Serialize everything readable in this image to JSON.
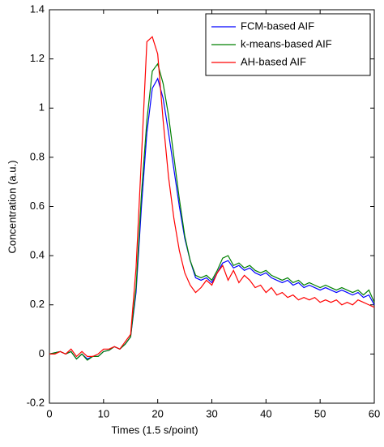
{
  "chart_data": {
    "type": "line",
    "xlabel": "Times (1.5 s/point)",
    "ylabel": "Concentration (a.u.)",
    "x": [
      0,
      1,
      2,
      3,
      4,
      5,
      6,
      7,
      8,
      9,
      10,
      11,
      12,
      13,
      14,
      15,
      16,
      17,
      18,
      19,
      20,
      21,
      22,
      23,
      24,
      25,
      26,
      27,
      28,
      29,
      30,
      31,
      32,
      33,
      34,
      35,
      36,
      37,
      38,
      39,
      40,
      41,
      42,
      43,
      44,
      45,
      46,
      47,
      48,
      49,
      50,
      51,
      52,
      53,
      54,
      55,
      56,
      57,
      58,
      59,
      60
    ],
    "series": [
      {
        "name": "FCM-based AIF",
        "color": "#0000ff",
        "values": [
          0,
          0.005,
          0.01,
          0,
          0.01,
          -0.02,
          0,
          -0.02,
          -0.01,
          -0.01,
          0.01,
          0.015,
          0.03,
          0.02,
          0.04,
          0.07,
          0.25,
          0.6,
          0.9,
          1.08,
          1.12,
          1.04,
          0.9,
          0.75,
          0.6,
          0.47,
          0.38,
          0.31,
          0.3,
          0.31,
          0.29,
          0.33,
          0.37,
          0.38,
          0.35,
          0.36,
          0.34,
          0.35,
          0.33,
          0.32,
          0.33,
          0.31,
          0.3,
          0.29,
          0.3,
          0.28,
          0.29,
          0.27,
          0.28,
          0.27,
          0.26,
          0.27,
          0.26,
          0.25,
          0.26,
          0.25,
          0.24,
          0.25,
          0.23,
          0.24,
          0.2
        ]
      },
      {
        "name": "k-means-based AIF",
        "color": "#008000",
        "values": [
          0,
          0.005,
          0.01,
          0,
          0.01,
          -0.02,
          0,
          -0.025,
          -0.01,
          -0.01,
          0.01,
          0.015,
          0.03,
          0.02,
          0.04,
          0.07,
          0.27,
          0.65,
          0.95,
          1.15,
          1.18,
          1.1,
          0.97,
          0.8,
          0.63,
          0.48,
          0.38,
          0.32,
          0.31,
          0.32,
          0.3,
          0.34,
          0.39,
          0.4,
          0.36,
          0.37,
          0.35,
          0.36,
          0.34,
          0.33,
          0.34,
          0.32,
          0.31,
          0.3,
          0.31,
          0.29,
          0.3,
          0.28,
          0.29,
          0.28,
          0.27,
          0.28,
          0.27,
          0.26,
          0.27,
          0.26,
          0.25,
          0.26,
          0.24,
          0.26,
          0.21
        ]
      },
      {
        "name": "AH-based AIF",
        "color": "#ff0000",
        "values": [
          0,
          0,
          0.01,
          0,
          0.02,
          -0.01,
          0.01,
          -0.01,
          -0.01,
          0,
          0.02,
          0.02,
          0.03,
          0.02,
          0.05,
          0.08,
          0.35,
          0.8,
          1.27,
          1.29,
          1.22,
          0.95,
          0.72,
          0.55,
          0.42,
          0.33,
          0.28,
          0.25,
          0.27,
          0.3,
          0.28,
          0.33,
          0.36,
          0.3,
          0.34,
          0.29,
          0.32,
          0.3,
          0.27,
          0.28,
          0.25,
          0.27,
          0.24,
          0.25,
          0.23,
          0.24,
          0.22,
          0.23,
          0.22,
          0.23,
          0.21,
          0.22,
          0.21,
          0.22,
          0.2,
          0.21,
          0.2,
          0.22,
          0.21,
          0.2,
          0.19
        ]
      }
    ],
    "xlim": [
      0,
      60
    ],
    "xticks": [
      0,
      10,
      20,
      30,
      40,
      50,
      60
    ],
    "ylim": [
      -0.2,
      1.4
    ],
    "yticks": [
      -0.2,
      0,
      0.2,
      0.4,
      0.6,
      0.8,
      1,
      1.2,
      1.4
    ],
    "grid": false,
    "legend": "upper right"
  }
}
